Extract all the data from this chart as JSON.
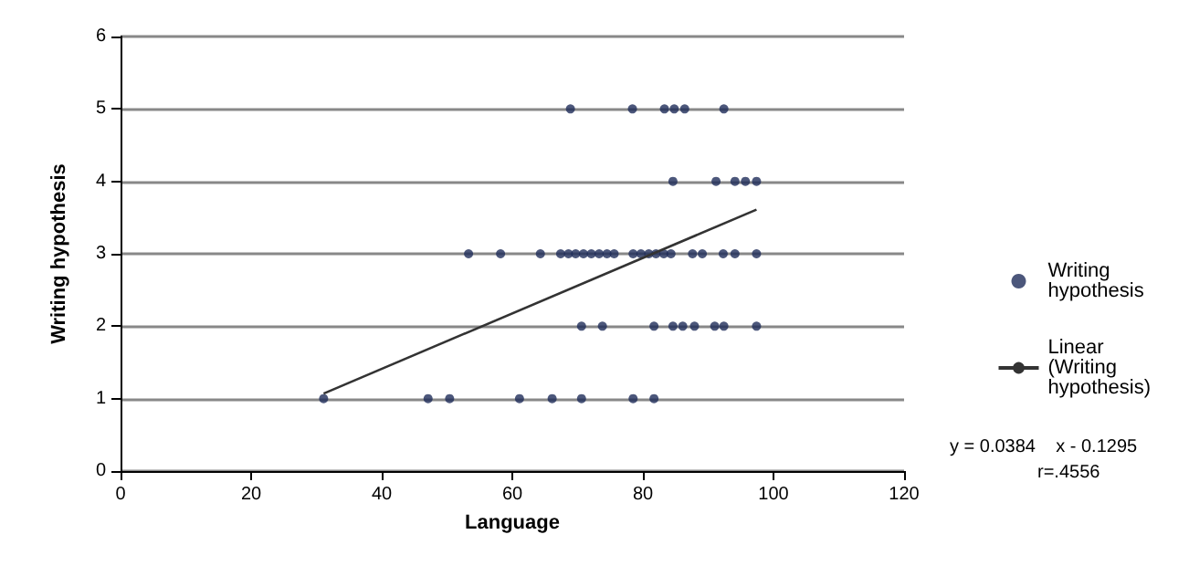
{
  "chart_data": {
    "type": "scatter",
    "xlabel": "Language",
    "ylabel": "Writing hypothesis",
    "xlim": [
      0,
      120
    ],
    "ylim": [
      0,
      6
    ],
    "xticks": [
      0,
      20,
      40,
      60,
      80,
      100,
      120
    ],
    "yticks": [
      0,
      1,
      2,
      3,
      4,
      5,
      6
    ],
    "grid": "y",
    "legend": "right",
    "annotations": [
      "y = 0.0384    x - 0.1295",
      "r=.4556"
    ],
    "series": [
      {
        "name": "Writing hypothesis",
        "marker": "circle",
        "color": "#1f2d5a",
        "x": [
          31.1,
          47.1,
          50.4,
          61.1,
          66.1,
          70.6,
          78.5,
          81.7,
          70.6,
          73.8,
          81.7,
          84.6,
          86.1,
          87.9,
          91.0,
          92.4,
          97.4,
          53.3,
          58.2,
          64.3,
          67.4,
          68.6,
          69.7,
          70.9,
          72.1,
          73.3,
          74.5,
          75.6,
          78.5,
          79.7,
          80.9,
          82.0,
          83.2,
          84.3,
          87.6,
          89.1,
          92.3,
          94.1,
          97.4,
          84.6,
          91.2,
          94.1,
          95.7,
          97.4,
          68.9,
          78.4,
          83.3,
          84.8,
          86.4,
          92.4
        ],
        "values": [
          1,
          1,
          1,
          1,
          1,
          1,
          1,
          1,
          2,
          2,
          2,
          2,
          2,
          2,
          2,
          2,
          2,
          3,
          3,
          3,
          3,
          3,
          3,
          3,
          3,
          3,
          3,
          3,
          3,
          3,
          3,
          3,
          3,
          3,
          3,
          3,
          3,
          3,
          3,
          4,
          4,
          4,
          4,
          4,
          5,
          5,
          5,
          5,
          5,
          5
        ]
      },
      {
        "name": "Linear (Writing hypothesis)",
        "type": "line",
        "color": "#333333",
        "x": [
          31.1,
          97.4
        ],
        "values": [
          1.07,
          3.61
        ]
      }
    ]
  }
}
